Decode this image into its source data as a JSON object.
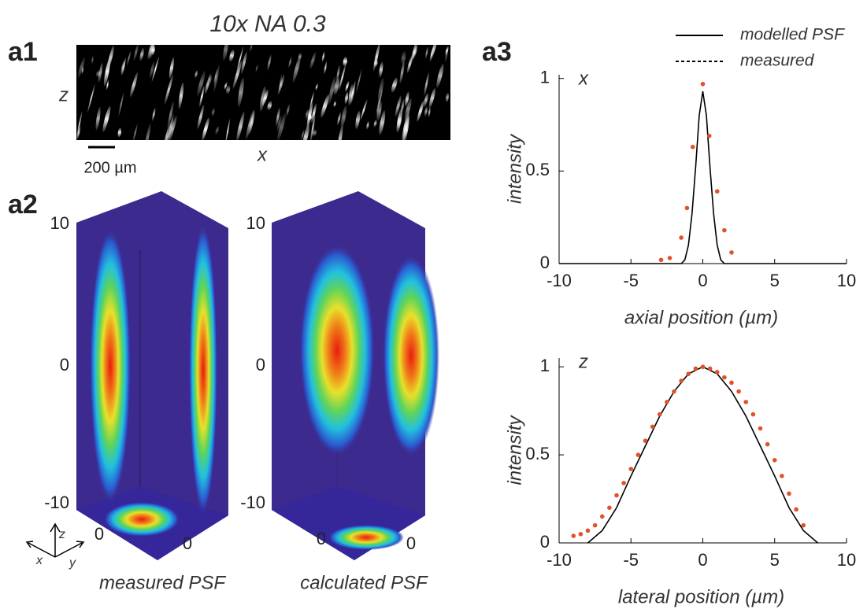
{
  "figure": {
    "a1": {
      "label": "a1",
      "title": "10x NA 0.3",
      "z_label": "z",
      "x_label": "x",
      "scale_bar": "200 µm"
    },
    "a2": {
      "label": "a2",
      "panels": [
        {
          "caption": "measured PSF",
          "zticks": [
            10,
            0,
            -10
          ],
          "xtick": 0,
          "ytick": 0
        },
        {
          "caption": "calculated PSF",
          "zticks": [
            10,
            0,
            -10
          ],
          "xtick": 0,
          "ytick": 0
        }
      ],
      "axes": [
        "x",
        "y",
        "z"
      ]
    },
    "a3": {
      "label": "a3"
    }
  },
  "chart_data": [
    {
      "type": "line",
      "annotation": "x",
      "xlabel": "axial position (µm)",
      "ylabel": "intensity",
      "xlim": [
        -10,
        10
      ],
      "xticks": [
        -10,
        -5,
        0,
        5,
        10
      ],
      "ylim": [
        0,
        1.02
      ],
      "yticks": [
        0,
        0.5,
        1
      ],
      "legend": "above",
      "series": [
        {
          "name": "modelled PSF",
          "color": "#000000",
          "style": "line",
          "x": [
            -10,
            -1.5,
            -1.25,
            -1,
            -0.75,
            -0.5,
            -0.25,
            0,
            0.25,
            0.5,
            0.75,
            1,
            1.25,
            1.5,
            10
          ],
          "values": [
            0,
            0,
            0.02,
            0.1,
            0.27,
            0.52,
            0.8,
            0.93,
            0.8,
            0.52,
            0.27,
            0.1,
            0.02,
            0,
            0
          ]
        },
        {
          "name": "measured",
          "color": "#e0522a",
          "style": "dots",
          "x": [
            -2.9,
            -2.3,
            -1.5,
            -1.1,
            -0.7,
            0,
            0.45,
            1.0,
            1.5,
            2.0
          ],
          "values": [
            0.02,
            0.03,
            0.14,
            0.3,
            0.63,
            0.97,
            0.69,
            0.39,
            0.18,
            0.06
          ]
        }
      ]
    },
    {
      "type": "line",
      "annotation": "z",
      "xlabel": "lateral position (µm)",
      "ylabel": "intensity",
      "xlim": [
        -10,
        10
      ],
      "xticks": [
        -10,
        -5,
        0,
        5,
        10
      ],
      "ylim": [
        0,
        1.05
      ],
      "yticks": [
        0,
        0.5,
        1
      ],
      "series": [
        {
          "color": "#000000",
          "style": "line",
          "x": [
            -8,
            -7,
            -6,
            -5,
            -4,
            -3,
            -2,
            -1,
            0,
            1,
            2,
            3,
            4,
            5,
            6,
            7,
            8
          ],
          "values": [
            0,
            0.07,
            0.2,
            0.38,
            0.55,
            0.72,
            0.86,
            0.96,
            1,
            0.96,
            0.86,
            0.72,
            0.55,
            0.38,
            0.2,
            0.07,
            0
          ]
        },
        {
          "color": "#e0522a",
          "style": "dots",
          "x": [
            -9,
            -8.5,
            -8,
            -7.5,
            -7,
            -6.5,
            -6,
            -5.5,
            -5,
            -4.5,
            -4,
            -3.5,
            -3,
            -2.5,
            -2,
            -1.5,
            -1,
            -0.5,
            0,
            0.5,
            1,
            1.5,
            2,
            2.5,
            3,
            3.5,
            4,
            4.5,
            5,
            5.5,
            6,
            6.5,
            7
          ],
          "values": [
            0.04,
            0.05,
            0.07,
            0.1,
            0.15,
            0.2,
            0.27,
            0.34,
            0.42,
            0.5,
            0.58,
            0.66,
            0.73,
            0.8,
            0.86,
            0.92,
            0.96,
            0.99,
            1,
            0.99,
            0.97,
            0.94,
            0.91,
            0.86,
            0.8,
            0.73,
            0.65,
            0.56,
            0.47,
            0.38,
            0.28,
            0.19,
            0.1
          ]
        }
      ]
    }
  ]
}
